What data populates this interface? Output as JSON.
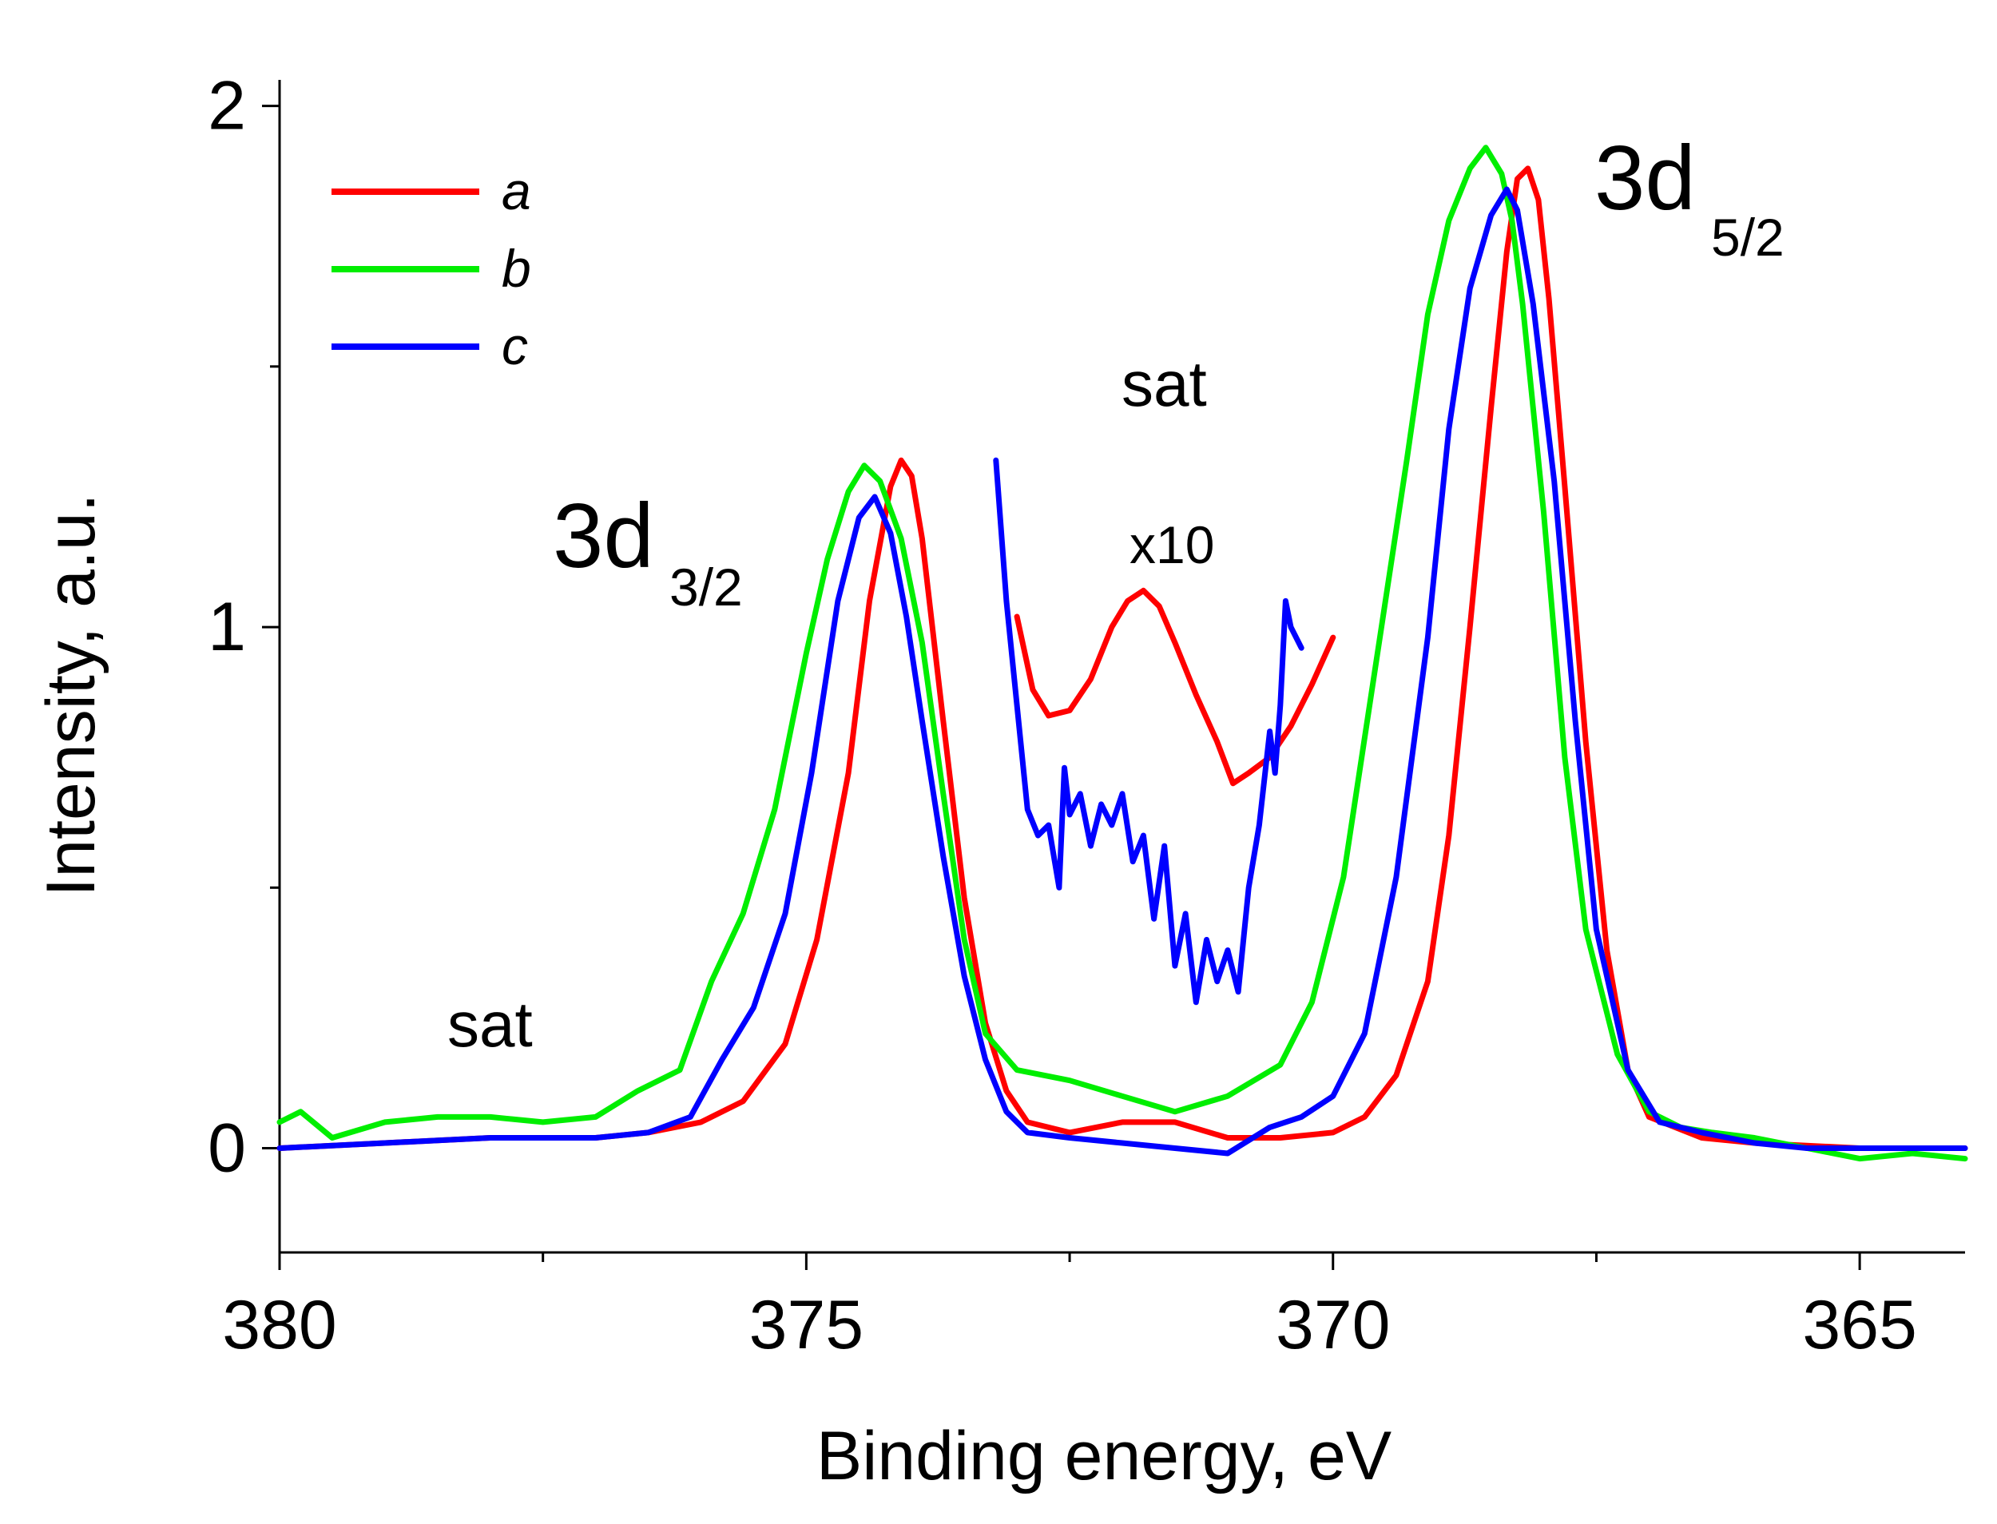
{
  "chart_data": {
    "type": "line",
    "xlabel": "Binding energy, eV",
    "ylabel": "Intensity, a.u.",
    "xlim": [
      380,
      364
    ],
    "x_reversed": true,
    "ylim": [
      -0.2,
      2.05
    ],
    "x_major_ticks": [
      380,
      375,
      370,
      365
    ],
    "x_minor_ticks": [
      377.5,
      372.5,
      367.5
    ],
    "y_major_ticks": [
      0,
      1,
      2
    ],
    "y_minor_ticks": [
      0.5,
      1.5
    ],
    "legend": {
      "position": "top-left",
      "entries": [
        "a",
        "b",
        "c"
      ]
    },
    "annotations": {
      "peak_3d32_main": "3d",
      "peak_3d32_sub": "3/2",
      "peak_3d52_main": "3d",
      "peak_3d52_sub": "5/2",
      "sat_left": "sat",
      "sat_center": "sat",
      "magnification": "x10"
    },
    "series": [
      {
        "name": "a",
        "color": "#ff0000",
        "x": [
          380,
          379,
          378,
          377,
          376.5,
          376,
          375.6,
          375.2,
          374.9,
          374.6,
          374.4,
          374.2,
          374.1,
          374.0,
          373.9,
          373.7,
          373.5,
          373.3,
          373.1,
          372.9,
          372.5,
          372,
          371.5,
          371,
          370.5,
          370,
          369.7,
          369.4,
          369.1,
          368.9,
          368.7,
          368.5,
          368.35,
          368.25,
          368.15,
          368.05,
          367.95,
          367.8,
          367.6,
          367.4,
          367.2,
          367,
          366.5,
          366,
          365,
          364
        ],
        "y": [
          0,
          0.01,
          0.02,
          0.02,
          0.03,
          0.05,
          0.09,
          0.2,
          0.4,
          0.72,
          1.05,
          1.27,
          1.32,
          1.29,
          1.17,
          0.82,
          0.48,
          0.24,
          0.11,
          0.05,
          0.03,
          0.05,
          0.05,
          0.02,
          0.02,
          0.03,
          0.06,
          0.14,
          0.32,
          0.6,
          1.0,
          1.42,
          1.72,
          1.86,
          1.88,
          1.82,
          1.63,
          1.27,
          0.78,
          0.38,
          0.15,
          0.06,
          0.02,
          0.01,
          0,
          0
        ]
      },
      {
        "name": "b",
        "color": "#00ee00",
        "x": [
          380,
          379.8,
          379.5,
          379,
          378.5,
          378,
          377.5,
          377,
          376.6,
          376.2,
          375.9,
          375.6,
          375.3,
          375.0,
          374.8,
          374.6,
          374.45,
          374.3,
          374.1,
          373.9,
          373.7,
          373.5,
          373.3,
          373.0,
          372.5,
          372,
          371.5,
          371,
          370.5,
          370.2,
          369.9,
          369.6,
          369.3,
          369.1,
          368.9,
          368.7,
          368.55,
          368.4,
          368.3,
          368.2,
          368.0,
          367.8,
          367.6,
          367.3,
          367.0,
          366.7,
          366.4,
          366,
          365.5,
          365,
          364.5,
          364
        ],
        "y": [
          0.05,
          0.07,
          0.02,
          0.05,
          0.06,
          0.06,
          0.05,
          0.06,
          0.11,
          0.15,
          0.32,
          0.45,
          0.65,
          0.95,
          1.13,
          1.26,
          1.31,
          1.28,
          1.17,
          0.97,
          0.68,
          0.4,
          0.22,
          0.15,
          0.13,
          0.1,
          0.07,
          0.1,
          0.16,
          0.28,
          0.52,
          0.92,
          1.32,
          1.6,
          1.78,
          1.88,
          1.92,
          1.87,
          1.78,
          1.62,
          1.22,
          0.75,
          0.42,
          0.18,
          0.07,
          0.04,
          0.03,
          0.02,
          0,
          -0.02,
          -0.01,
          -0.02
        ]
      },
      {
        "name": "c",
        "color": "#0000ff",
        "x": [
          380,
          379,
          378,
          377,
          376.5,
          376.1,
          375.8,
          375.5,
          375.2,
          374.95,
          374.7,
          374.5,
          374.35,
          374.2,
          374.05,
          373.9,
          373.7,
          373.5,
          373.3,
          373.1,
          372.9,
          372.5,
          372,
          371.5,
          371,
          370.6,
          370.3,
          370.0,
          369.7,
          369.4,
          369.1,
          368.9,
          368.7,
          368.5,
          368.35,
          368.25,
          368.1,
          367.9,
          367.7,
          367.5,
          367.2,
          366.9,
          366.5,
          366,
          365.5,
          365,
          364
        ],
        "y": [
          0,
          0.01,
          0.02,
          0.02,
          0.03,
          0.06,
          0.17,
          0.27,
          0.45,
          0.72,
          1.05,
          1.21,
          1.25,
          1.18,
          1.02,
          0.82,
          0.56,
          0.33,
          0.17,
          0.07,
          0.03,
          0.02,
          0.01,
          0.0,
          -0.01,
          0.04,
          0.06,
          0.1,
          0.22,
          0.52,
          0.98,
          1.38,
          1.65,
          1.79,
          1.84,
          1.8,
          1.62,
          1.28,
          0.82,
          0.42,
          0.15,
          0.05,
          0.03,
          0.01,
          0,
          0,
          0
        ]
      },
      {
        "name": "a x10",
        "color": "#ff0000",
        "x": [
          373.0,
          372.85,
          372.7,
          372.5,
          372.3,
          372.1,
          371.95,
          371.8,
          371.65,
          371.5,
          371.3,
          371.1,
          370.95,
          370.8,
          370.6,
          370.4,
          370.2,
          370.0
        ],
        "y": [
          1.02,
          0.88,
          0.83,
          0.84,
          0.9,
          1.0,
          1.05,
          1.07,
          1.04,
          0.97,
          0.87,
          0.78,
          0.7,
          0.72,
          0.75,
          0.81,
          0.89,
          0.98
        ]
      },
      {
        "name": "c x10",
        "color": "#0000ff",
        "x": [
          373.2,
          373.1,
          373.0,
          372.9,
          372.8,
          372.7,
          372.6,
          372.55,
          372.5,
          372.4,
          372.3,
          372.2,
          372.1,
          372.0,
          371.9,
          371.8,
          371.7,
          371.6,
          371.5,
          371.4,
          371.3,
          371.2,
          371.1,
          371.0,
          370.9,
          370.8,
          370.7,
          370.6,
          370.55,
          370.5,
          370.45,
          370.4,
          370.3
        ],
        "y": [
          1.32,
          1.05,
          0.85,
          0.65,
          0.6,
          0.62,
          0.5,
          0.73,
          0.64,
          0.68,
          0.58,
          0.66,
          0.62,
          0.68,
          0.55,
          0.6,
          0.44,
          0.58,
          0.35,
          0.45,
          0.28,
          0.4,
          0.32,
          0.38,
          0.3,
          0.5,
          0.62,
          0.8,
          0.72,
          0.85,
          1.05,
          1.0,
          0.96
        ]
      }
    ]
  }
}
